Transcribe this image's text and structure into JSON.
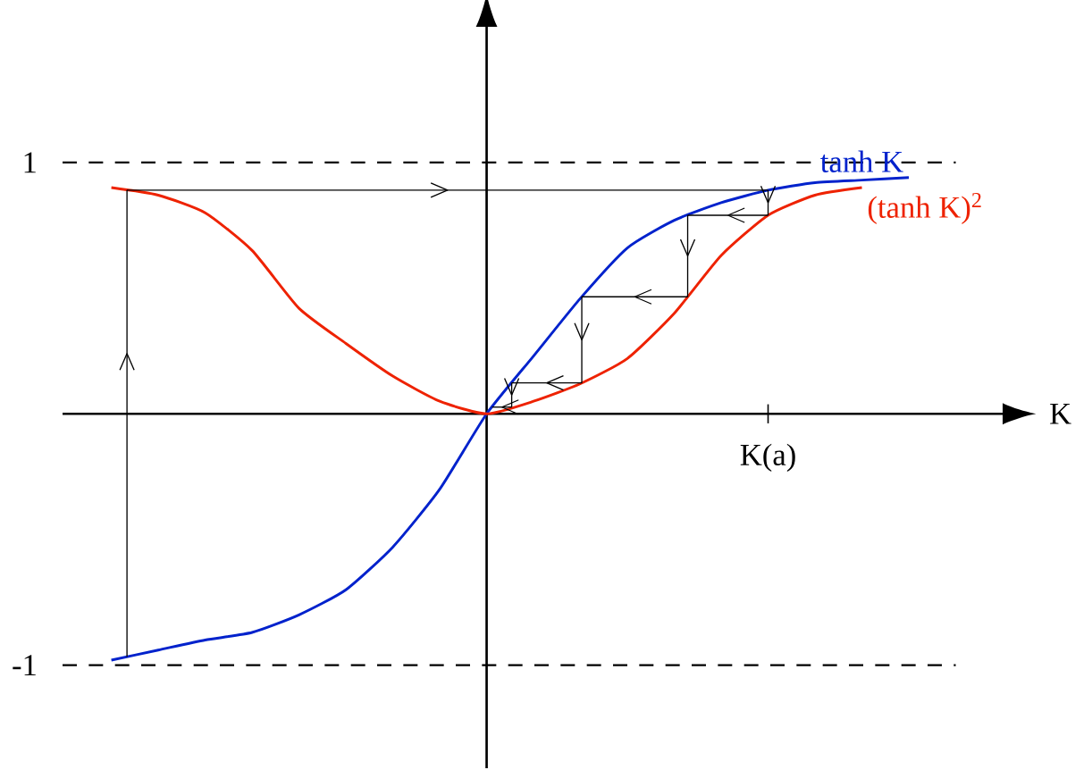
{
  "chart_data": {
    "type": "line",
    "xlabel": "K",
    "categories": [
      null,
      null,
      null,
      null,
      null,
      null,
      null,
      null,
      null,
      null,
      null,
      null,
      null,
      null,
      "K(a)",
      null,
      null,
      null
    ],
    "ylim": [
      -1.41,
      1.54
    ],
    "yticks": [
      {
        "value": -1,
        "label": "-1"
      },
      {
        "value": 1,
        "label": "1"
      }
    ],
    "legend": false,
    "grid": false,
    "marker": "none",
    "ref_lines": [
      {
        "axis": "y",
        "value": 1,
        "line_style": "dashed",
        "color": "#000000"
      },
      {
        "axis": "y",
        "value": -1,
        "line_style": "dashed",
        "color": "#000000"
      }
    ],
    "series": [
      {
        "name": "tanh K",
        "color": "#0022cc",
        "values": [
          -0.98,
          -0.94,
          -0.9,
          -0.87,
          -0.8,
          -0.7,
          -0.53,
          -0.3,
          0,
          0.23,
          0.46,
          0.66,
          0.77,
          0.84,
          0.89,
          0.92,
          0.93,
          0.94
        ]
      },
      {
        "name": "(tanh K)$^{2}$",
        "color": "#ee2200",
        "values": [
          0.9,
          0.87,
          0.8,
          0.65,
          0.42,
          0.28,
          0.15,
          0.05,
          0,
          0.05,
          0.12,
          0.22,
          0.4,
          0.63,
          0.79,
          0.87,
          0.9,
          null
        ]
      }
    ]
  }
}
